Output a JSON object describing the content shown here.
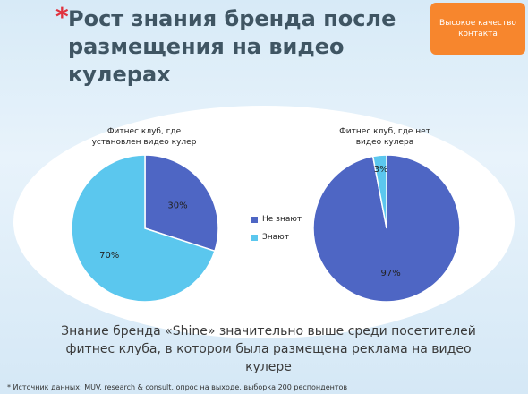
{
  "slide": {
    "title_marker": "*",
    "title": "Рост знания бренда после размещения на видео кулерах",
    "badge": "Высокое качество контакта",
    "conclusion": "Знание бренда «Shine» значительно выше среди посетителей фитнес клуба, в котором была размещена реклама на видео кулере",
    "source": "* Источник данных: MUV. research & consult, опрос на выходе, выборка 200 респондентов"
  },
  "colors": {
    "ne_znayut": "#4e66c4",
    "znayut": "#5bc7ee",
    "title_marker": "#e0323e",
    "badge_bg": "#f7862d"
  },
  "legend": [
    {
      "label": "Не знают",
      "color": "#4e66c4"
    },
    {
      "label": "Знают",
      "color": "#5bc7ee"
    }
  ],
  "chart_data": [
    {
      "type": "pie",
      "title": "Фитнес клуб, где установлен видео кулер",
      "categories": [
        "Не знают",
        "Знают"
      ],
      "values": [
        30,
        70
      ],
      "labels": [
        "30%",
        "70%"
      ],
      "legend": "center"
    },
    {
      "type": "pie",
      "title": "Фитнес клуб, где нет видео кулера",
      "categories": [
        "Не знают",
        "Знают"
      ],
      "values": [
        97,
        3
      ],
      "labels": [
        "97%",
        "3%"
      ],
      "legend": "center"
    }
  ]
}
